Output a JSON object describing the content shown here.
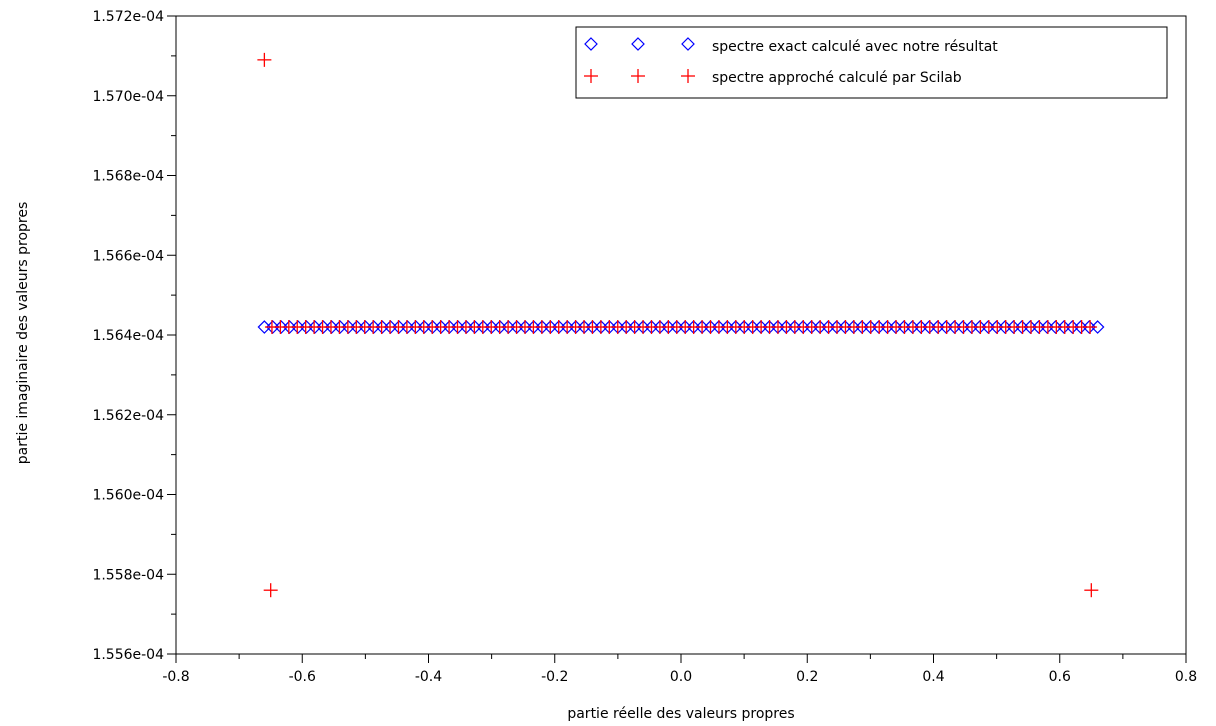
{
  "chart_data": {
    "type": "scatter",
    "title": "",
    "xlabel": "partie réelle des valeurs propres",
    "ylabel": "partie imaginaire des valeurs propres",
    "xlim": [
      -0.8,
      0.8
    ],
    "ylim": [
      0.0001556,
      0.0001572
    ],
    "x_ticks": [
      -0.8,
      -0.6,
      -0.4,
      -0.2,
      0.0,
      0.2,
      0.4,
      0.6,
      0.8
    ],
    "x_tick_labels": [
      "-0.8",
      "-0.6",
      "-0.4",
      "-0.2",
      "0.0",
      "0.2",
      "0.4",
      "0.6",
      "0.8"
    ],
    "y_ticks": [
      0.0001556,
      0.0001558,
      0.000156,
      0.0001562,
      0.0001564,
      0.0001566,
      0.0001568,
      0.000157,
      0.0001572
    ],
    "y_tick_labels": [
      "1.556e-04",
      "1.558e-04",
      "1.560e-04",
      "1.562e-04",
      "1.564e-04",
      "1.566e-04",
      "1.568e-04",
      "1.570e-04",
      "1.572e-04"
    ],
    "grid": false,
    "legend_position": "top-right",
    "series": [
      {
        "name": "spectre exact calculé avec notre résultat",
        "marker": "diamond",
        "color": "#0000ff",
        "x_range": [
          -0.66,
          0.66
        ],
        "num_points": 100,
        "y": 0.00015642
      },
      {
        "name": "spectre approché calculé par Scilab",
        "marker": "plus",
        "color": "#ff0000",
        "x_range": [
          -0.648,
          0.648
        ],
        "num_points": 98,
        "y": 0.00015642,
        "outliers": [
          {
            "x": -0.66,
            "y": 0.00015709
          },
          {
            "x": -0.65,
            "y": 0.00015576
          },
          {
            "x": 0.65,
            "y": 0.00015576
          }
        ]
      }
    ]
  }
}
